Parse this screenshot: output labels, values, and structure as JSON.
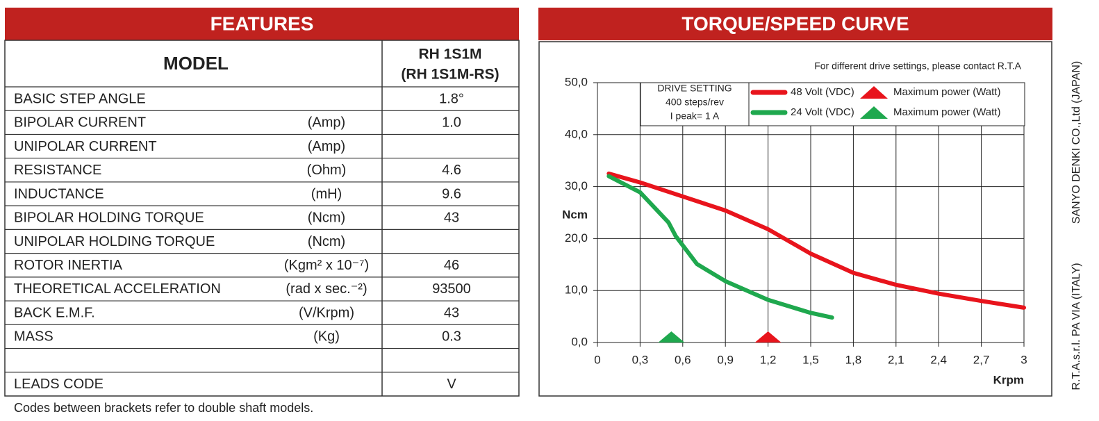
{
  "features": {
    "title": "FEATURES",
    "model_label": "MODEL",
    "model_value": [
      "RH 1S1M",
      "(RH 1S1M-RS)"
    ],
    "rows": [
      [
        "BASIC STEP ANGLE",
        null,
        "1.8°"
      ],
      [
        "BIPOLAR CURRENT",
        "(Amp)",
        "1.0"
      ],
      [
        "UNIPOLAR CURRENT",
        "(Amp)",
        null
      ],
      [
        "RESISTANCE",
        "(Ohm)",
        "4.6"
      ],
      [
        "INDUCTANCE",
        "(mH)",
        "9.6"
      ],
      [
        "BIPOLAR HOLDING TORQUE",
        "(Ncm)",
        "43"
      ],
      [
        "UNIPOLAR HOLDING TORQUE",
        "(Ncm)",
        null
      ],
      [
        "ROTOR INERTIA",
        "(Kgm² x 10⁻⁷)",
        "46"
      ],
      [
        "THEORETICAL ACCELERATION",
        "(rad x sec.⁻²)",
        "93500"
      ],
      [
        "BACK E.M.F.",
        "(V/Krpm)",
        "43"
      ],
      [
        "MASS",
        "(Kg)",
        "0.3"
      ],
      [
        null,
        null,
        null
      ],
      [
        "LEADS CODE",
        null,
        "V"
      ]
    ],
    "note": "Codes between brackets refer to double shaft models."
  },
  "side_text": [
    "SANYO DENKI CO.,Ltd (JAPAN)",
    "R.T.A.s.r.l. PA VIA (ITALY)"
  ],
  "chart_data": {
    "type": "line",
    "title": "TORQUE/SPEED CURVE",
    "annotation": "For different drive settings, please contact R.T.A",
    "drive_setting": [
      "DRIVE SETTING",
      "400 steps/rev",
      "I peak= 1 A"
    ],
    "x_label": "Krpm",
    "y_label": "Ncm",
    "xlim": [
      0,
      3
    ],
    "ylim": [
      0,
      50
    ],
    "xticks": [
      0,
      {
        "value": 0.3,
        "label": "0,3"
      },
      {
        "value": 0.6,
        "label": "0,6"
      },
      {
        "value": 0.9,
        "label": "0,9"
      },
      {
        "value": 1.2,
        "label": "1,2"
      },
      {
        "value": 1.5,
        "label": "1,5"
      },
      {
        "value": 1.8,
        "label": "1,8"
      },
      {
        "value": 2.1,
        "label": "2,1"
      },
      {
        "value": 2.4,
        "label": "2,4"
      },
      {
        "value": 2.7,
        "label": "2,7"
      },
      3
    ],
    "yticks": [
      {
        "value": 0,
        "label": "0,0"
      },
      {
        "value": 10,
        "label": "10,0"
      },
      {
        "value": 20,
        "label": "20,0"
      },
      {
        "value": 30,
        "label": "30,0"
      },
      {
        "value": 40,
        "label": "40,0"
      },
      {
        "value": 50,
        "label": "50,0"
      }
    ],
    "grid": true,
    "series": [
      {
        "name": "48 Volt (VDC)",
        "color": "#e8141c",
        "x": [
          0.08,
          0.3,
          0.6,
          0.9,
          1.2,
          1.5,
          1.8,
          2.1,
          2.4,
          2.7,
          3.0
        ],
        "values": [
          32.5,
          30.8,
          28.1,
          25.4,
          21.8,
          17.1,
          13.4,
          11.1,
          9.4,
          8.0,
          6.7
        ]
      },
      {
        "name": "24 Volt (VDC)",
        "color": "#1fa84e",
        "x": [
          0.08,
          0.3,
          0.5,
          0.55,
          0.7,
          0.9,
          1.2,
          1.5,
          1.65
        ],
        "values": [
          32.0,
          28.9,
          23.1,
          20.5,
          15.1,
          11.8,
          8.2,
          5.7,
          4.8
        ]
      }
    ],
    "max_power": [
      {
        "name": "Maximum power (Watt)",
        "color": "#e8141c",
        "x": 1.2
      },
      {
        "name": "Maximum power (Watt)",
        "color": "#1fa84e",
        "x": 0.52
      }
    ]
  }
}
